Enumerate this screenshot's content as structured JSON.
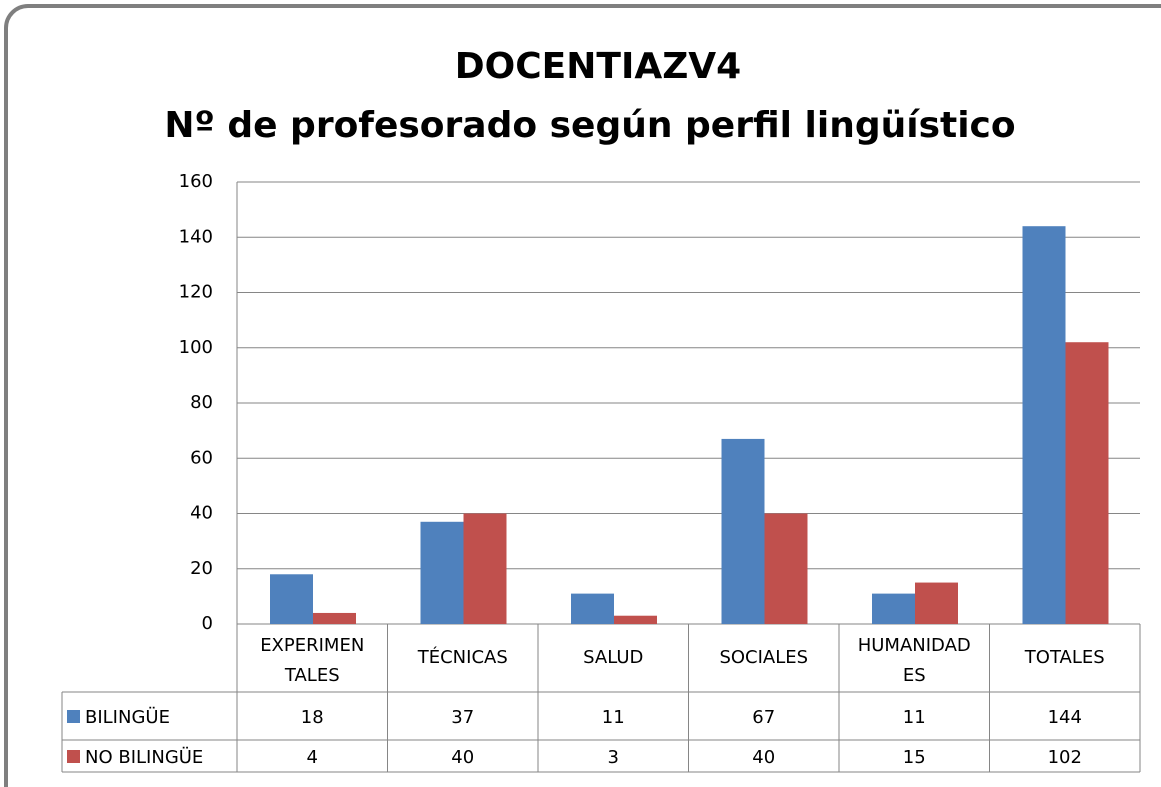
{
  "chart_data": {
    "type": "bar",
    "title": [
      "DOCENTIAZV4",
      "Nº de profesorado según perfil lingüístico"
    ],
    "categories": [
      "EXPERIMENTALES",
      "TÉCNICAS",
      "SALUD",
      "SOCIALES",
      "HUMANIDADES",
      "TOTALES"
    ],
    "series": [
      {
        "name": "BILINGÜE",
        "color": "#4f81bd",
        "values": [
          18,
          37,
          11,
          67,
          11,
          144
        ]
      },
      {
        "name": "NO BILINGÜE",
        "color": "#c0504d",
        "values": [
          4,
          40,
          3,
          40,
          15,
          102
        ]
      }
    ],
    "ylim": [
      0,
      160
    ],
    "yticks": [
      0,
      20,
      40,
      60,
      80,
      100,
      120,
      140,
      160
    ],
    "grid": true,
    "legend": "data-table"
  }
}
